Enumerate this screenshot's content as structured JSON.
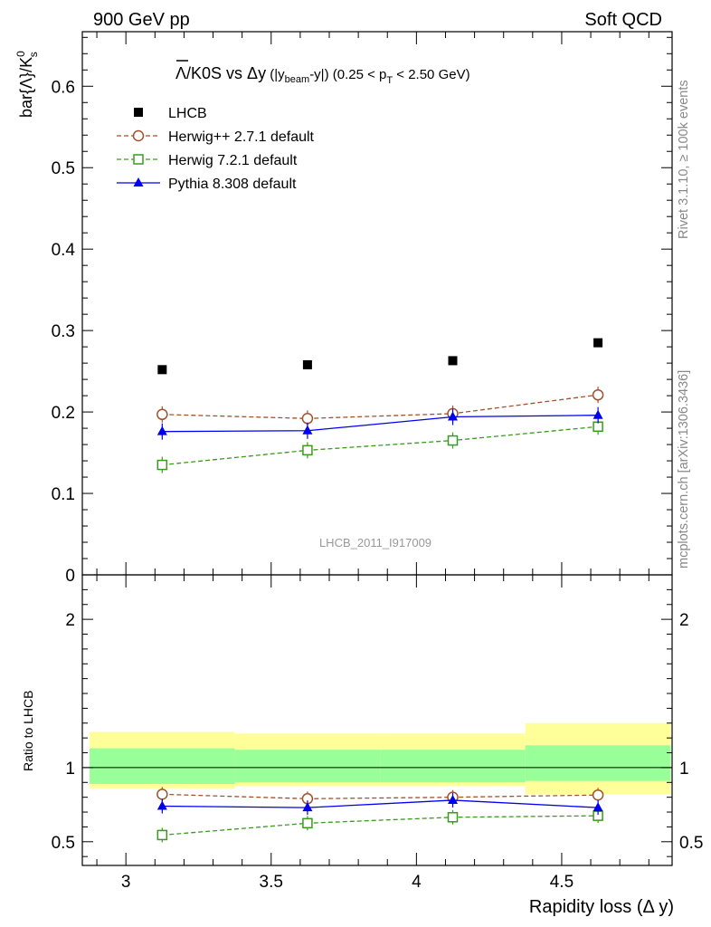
{
  "header": {
    "left": "900 GeV pp",
    "right": "Soft QCD"
  },
  "side": {
    "rivet": "Rivet 3.1.10, ≥ 100k events",
    "mcplots": "mcplots.cern.ch [arXiv:1306.3436]"
  },
  "watermark": "LHCB_2011_I917009",
  "colors": {
    "lhcb": "#000000",
    "herwigpp": "#a0522d",
    "herwig7": "#3a9a1e",
    "pythia": "#0000ee",
    "band_inner": "#99ff99",
    "band_outer": "#ffff99"
  },
  "chart_data": [
    {
      "type": "scatter",
      "panel": "main",
      "title": {
        "main": "Λ/K0S vs Δy",
        "lambda": "Λ",
        "rest1": "/K0S vs Δy",
        "paren1": " (|y",
        "beam_sub": "beam",
        "paren2": "-y|)",
        "range1": " (0.25 < p",
        "pt_sub": "T",
        "range2": " < 2.50 GeV)"
      },
      "ylabel": {
        "text": "bar{Λ}/K",
        "sup": "0",
        "sub": "s"
      },
      "xlim": [
        2.85,
        4.88
      ],
      "ylim": [
        0,
        0.667
      ],
      "yticks": [
        {
          "v": 0.1,
          "label": "0.1"
        },
        {
          "v": 0.2,
          "label": "0.2"
        },
        {
          "v": 0.3,
          "label": "0.3"
        },
        {
          "v": 0.4,
          "label": "0.4"
        },
        {
          "v": 0.5,
          "label": "0.5"
        },
        {
          "v": 0.6,
          "label": "0.6"
        },
        {
          "v": 0.0,
          "label": "0"
        }
      ],
      "legend_position": "top-left",
      "series": [
        {
          "key": "lhcb",
          "name": "LHCB",
          "marker": "filled-square",
          "line": "none",
          "x": [
            3.125,
            3.625,
            4.125,
            4.625
          ],
          "y": [
            0.252,
            0.258,
            0.263,
            0.285
          ]
        },
        {
          "key": "herwigpp",
          "name": "Herwig++ 2.7.1 default",
          "marker": "open-circle",
          "line": "dashed",
          "x": [
            3.125,
            3.625,
            4.125,
            4.625
          ],
          "y": [
            0.197,
            0.192,
            0.198,
            0.221
          ]
        },
        {
          "key": "herwig7",
          "name": "Herwig 7.2.1 default",
          "marker": "open-square",
          "line": "dashed",
          "x": [
            3.125,
            3.625,
            4.125,
            4.625
          ],
          "y": [
            0.135,
            0.153,
            0.165,
            0.182
          ]
        },
        {
          "key": "pythia",
          "name": "Pythia 8.308 default",
          "marker": "filled-triangle",
          "line": "solid",
          "x": [
            3.125,
            3.625,
            4.125,
            4.625
          ],
          "y": [
            0.176,
            0.177,
            0.194,
            0.196
          ]
        }
      ]
    },
    {
      "type": "scatter",
      "panel": "ratio",
      "ylabel": "Ratio to LHCB",
      "xlabel": "Rapidity loss (Δ y)",
      "xlim": [
        2.85,
        4.88
      ],
      "ylim": [
        0.34,
        2.3
      ],
      "xticks": [
        {
          "v": 3.0,
          "label": "3"
        },
        {
          "v": 3.5,
          "label": "3.5"
        },
        {
          "v": 4.0,
          "label": "4"
        },
        {
          "v": 4.5,
          "label": "4.5"
        }
      ],
      "yticks": [
        {
          "v": 0.5,
          "label": "0.5"
        },
        {
          "v": 1.0,
          "label": "1"
        },
        {
          "v": 2.0,
          "label": "2"
        }
      ],
      "bands": [
        {
          "x0": 2.875,
          "x1": 3.375,
          "inner": [
            0.89,
            1.13
          ],
          "outer": [
            0.86,
            1.24
          ]
        },
        {
          "x0": 3.375,
          "x1": 3.875,
          "inner": [
            0.9,
            1.12
          ],
          "outer": [
            0.875,
            1.23
          ]
        },
        {
          "x0": 3.875,
          "x1": 4.375,
          "inner": [
            0.9,
            1.12
          ],
          "outer": [
            0.875,
            1.23
          ]
        },
        {
          "x0": 4.375,
          "x1": 4.875,
          "inner": [
            0.91,
            1.15
          ],
          "outer": [
            0.82,
            1.3
          ]
        }
      ],
      "series": [
        {
          "key": "herwigpp",
          "marker": "open-circle",
          "line": "dashed",
          "x": [
            3.125,
            3.625,
            4.125,
            4.625
          ],
          "y": [
            0.82,
            0.79,
            0.8,
            0.815
          ]
        },
        {
          "key": "herwig7",
          "marker": "open-square",
          "line": "dashed",
          "x": [
            3.125,
            3.625,
            4.125,
            4.625
          ],
          "y": [
            0.545,
            0.625,
            0.665,
            0.675
          ]
        },
        {
          "key": "pythia",
          "marker": "filled-triangle",
          "line": "solid",
          "x": [
            3.125,
            3.625,
            4.125,
            4.625
          ],
          "y": [
            0.74,
            0.73,
            0.78,
            0.73
          ]
        }
      ]
    }
  ]
}
